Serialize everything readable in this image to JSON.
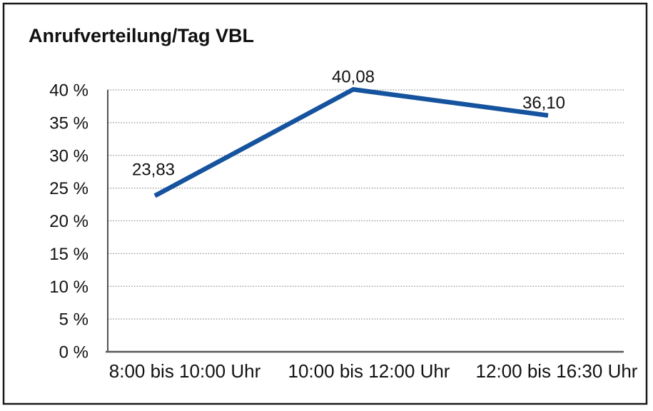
{
  "chart_data": {
    "type": "line",
    "title": "Anrufverteilung/Tag VBL",
    "categories": [
      "8:00 bis 10:00 Uhr",
      "10:00 bis 12:00 Uhr",
      "12:00 bis 16:30 Uhr"
    ],
    "series": [
      {
        "name": "Anrufverteilung/Tag VBL",
        "values": [
          23.83,
          40.08,
          36.1
        ],
        "value_labels": [
          "23,83",
          "40,08",
          "36,10"
        ]
      }
    ],
    "xlabel": "",
    "ylabel": "",
    "ylim": [
      0,
      40
    ],
    "ytick_step": 5,
    "ytick_labels": [
      "0 %",
      "5 %",
      "10 %",
      "15 %",
      "20 %",
      "25 %",
      "30 %",
      "35 %",
      "40 %"
    ],
    "grid": "horizontal dotted",
    "legend": "none",
    "colors": {
      "line": "#15539e",
      "grid": "#8f8f8f",
      "x_axis": "#595959",
      "y_axis": "#1a1a1a",
      "text": "#111111",
      "background": "#ffffff",
      "border": "#1a1a1a"
    }
  }
}
